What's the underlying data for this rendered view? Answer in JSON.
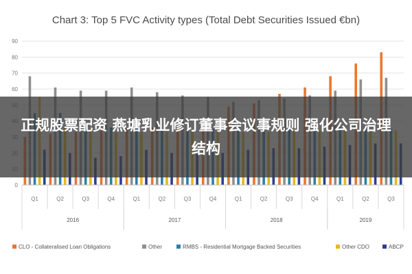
{
  "chart_data": {
    "type": "bar",
    "title": "Chart 3: Top 5 FVC Activity types (Total Debt Securities Issued €bn)",
    "ylim": [
      0,
      90
    ],
    "yticks": [
      0,
      10,
      20,
      30,
      40,
      50,
      60,
      70,
      80,
      90
    ],
    "categories": [
      "Q1",
      "Q2",
      "Q3",
      "Q4",
      "Q1",
      "Q2",
      "Q3",
      "Q4",
      "Q1",
      "Q2",
      "Q3",
      "Q4",
      "Q1",
      "Q2",
      "Q3"
    ],
    "years": [
      {
        "label": "2016",
        "start": 0,
        "count": 4
      },
      {
        "label": "2017",
        "start": 4,
        "count": 4
      },
      {
        "label": "2018",
        "start": 8,
        "count": 4
      },
      {
        "label": "2019",
        "start": 12,
        "count": 3
      }
    ],
    "series": [
      {
        "name": "CLO - Collateralised Loan Obligations",
        "color": "#e8772e",
        "values": [
          30,
          32,
          33,
          34,
          35,
          36,
          38,
          40,
          49,
          51,
          57,
          61,
          68,
          76,
          83
        ]
      },
      {
        "name": "Other",
        "color": "#8f8f8f",
        "values": [
          68,
          61,
          59,
          59,
          61,
          58,
          56,
          55,
          52,
          53,
          54,
          56,
          59,
          66,
          67
        ]
      },
      {
        "name": "RMBS - Residential Mortgage Backed Securities",
        "color": "#2d7fa8",
        "values": [
          45,
          45,
          36,
          36,
          36,
          35,
          35,
          35,
          36,
          36,
          35,
          35,
          36,
          34,
          35
        ]
      },
      {
        "name": "Other CDO",
        "color": "#e8b81f",
        "values": [
          55,
          37,
          35,
          33,
          33,
          33,
          33,
          33,
          33,
          33,
          34,
          34,
          34,
          34,
          34
        ]
      },
      {
        "name": "ABCP",
        "color": "#2c3f8f",
        "values": [
          22,
          20,
          17,
          18,
          22,
          20,
          20,
          20,
          22,
          23,
          23,
          24,
          25,
          26,
          26
        ]
      }
    ]
  },
  "overlay": {
    "text": "正规股票配资 燕塘乳业修订董事会议事规则 强化公司治理结构"
  }
}
